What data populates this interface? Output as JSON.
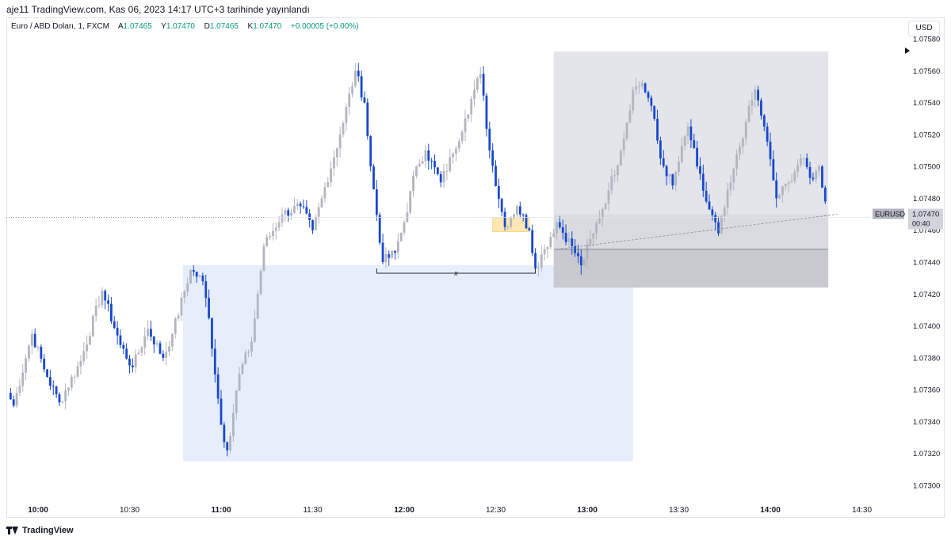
{
  "header": {
    "publisher": "aje11 TradingView.com, Kas 06, 2023 14:17 UTC+3 tarihinde yayınlandı"
  },
  "legend": {
    "symbol": "Euro / ABD Doları, 1, FXCM",
    "open_label": "A",
    "open": "1.07465",
    "high_label": "Y",
    "high": "1.07470",
    "low_label": "D",
    "low": "1.07465",
    "close_label": "K",
    "close": "1.07470",
    "change": "+0.00005 (+0.00%)"
  },
  "currency_button": "USD",
  "footer": {
    "brand": "TradingView"
  },
  "colors": {
    "up": "#b2b5be",
    "down": "#1848cc",
    "range_box": "#e6edfb",
    "premium_box": "#e3e5ea",
    "discount_box": "#c8cad0",
    "fvg_box": "#fde7b3"
  },
  "chart_data": {
    "type": "candlestick",
    "symbol": "EURUSD",
    "timeframe": "1",
    "ylim": [
      1.0729,
      1.0758
    ],
    "yticks": [
      "1.07300",
      "1.07320",
      "1.07340",
      "1.07360",
      "1.07380",
      "1.07400",
      "1.07420",
      "1.07440",
      "1.07460",
      "1.07480",
      "1.07500",
      "1.07520",
      "1.07540",
      "1.07560",
      "1.07580"
    ],
    "xticks": [
      {
        "label": "10:00",
        "min": 0,
        "bold": true
      },
      {
        "label": "10:30",
        "min": 30,
        "bold": false
      },
      {
        "label": "11:00",
        "min": 60,
        "bold": true
      },
      {
        "label": "11:30",
        "min": 90,
        "bold": false
      },
      {
        "label": "12:00",
        "min": 120,
        "bold": true
      },
      {
        "label": "12:30",
        "min": 150,
        "bold": false
      },
      {
        "label": "13:00",
        "min": 180,
        "bold": true
      },
      {
        "label": "13:30",
        "min": 210,
        "bold": false
      },
      {
        "label": "14:00",
        "min": 240,
        "bold": true
      },
      {
        "label": "14:30",
        "min": 270,
        "bold": false
      }
    ],
    "last_price": {
      "symbol": "EURUSD",
      "price": "1.07470",
      "countdown": "00:40",
      "value": 1.0747
    },
    "range_low_label": "x",
    "pivots": [
      {
        "min": -10,
        "p": 1.07358
      },
      {
        "min": -8,
        "p": 1.0735
      },
      {
        "min": -2,
        "p": 1.07395
      },
      {
        "min": 3,
        "p": 1.07368
      },
      {
        "min": 7,
        "p": 1.07352
      },
      {
        "min": 14,
        "p": 1.07378
      },
      {
        "min": 21,
        "p": 1.07422
      },
      {
        "min": 27,
        "p": 1.07388
      },
      {
        "min": 31,
        "p": 1.07374
      },
      {
        "min": 36,
        "p": 1.07398
      },
      {
        "min": 41,
        "p": 1.0738
      },
      {
        "min": 44,
        "p": 1.07395
      },
      {
        "min": 50,
        "p": 1.07435
      },
      {
        "min": 54,
        "p": 1.07428
      },
      {
        "min": 56,
        "p": 1.07405
      },
      {
        "min": 60,
        "p": 1.07338
      },
      {
        "min": 62,
        "p": 1.07322
      },
      {
        "min": 66,
        "p": 1.0737
      },
      {
        "min": 70,
        "p": 1.0739
      },
      {
        "min": 74,
        "p": 1.0745
      },
      {
        "min": 80,
        "p": 1.0747
      },
      {
        "min": 86,
        "p": 1.07475
      },
      {
        "min": 90,
        "p": 1.0746
      },
      {
        "min": 93,
        "p": 1.0748
      },
      {
        "min": 99,
        "p": 1.0752
      },
      {
        "min": 104,
        "p": 1.0756
      },
      {
        "min": 107,
        "p": 1.0754
      },
      {
        "min": 109,
        "p": 1.075
      },
      {
        "min": 113,
        "p": 1.0744
      },
      {
        "min": 117,
        "p": 1.07446
      },
      {
        "min": 120,
        "p": 1.07465
      },
      {
        "min": 124,
        "p": 1.075
      },
      {
        "min": 127,
        "p": 1.0751
      },
      {
        "min": 132,
        "p": 1.0749
      },
      {
        "min": 136,
        "p": 1.07508
      },
      {
        "min": 140,
        "p": 1.0753
      },
      {
        "min": 143,
        "p": 1.07548
      },
      {
        "min": 145,
        "p": 1.07558
      },
      {
        "min": 148,
        "p": 1.0751
      },
      {
        "min": 153,
        "p": 1.07462
      },
      {
        "min": 157,
        "p": 1.07475
      },
      {
        "min": 161,
        "p": 1.0746
      },
      {
        "min": 163,
        "p": 1.07436
      },
      {
        "min": 166,
        "p": 1.07448
      },
      {
        "min": 170,
        "p": 1.07465
      },
      {
        "min": 175,
        "p": 1.0745
      },
      {
        "min": 178,
        "p": 1.07438
      },
      {
        "min": 182,
        "p": 1.07458
      },
      {
        "min": 187,
        "p": 1.07485
      },
      {
        "min": 191,
        "p": 1.0751
      },
      {
        "min": 195,
        "p": 1.07548
      },
      {
        "min": 198,
        "p": 1.07552
      },
      {
        "min": 201,
        "p": 1.07538
      },
      {
        "min": 204,
        "p": 1.07505
      },
      {
        "min": 208,
        "p": 1.07488
      },
      {
        "min": 213,
        "p": 1.07525
      },
      {
        "min": 216,
        "p": 1.075
      },
      {
        "min": 219,
        "p": 1.07478
      },
      {
        "min": 223,
        "p": 1.07458
      },
      {
        "min": 227,
        "p": 1.0749
      },
      {
        "min": 232,
        "p": 1.07528
      },
      {
        "min": 235,
        "p": 1.07548
      },
      {
        "min": 238,
        "p": 1.07525
      },
      {
        "min": 242,
        "p": 1.0748
      },
      {
        "min": 246,
        "p": 1.0749
      },
      {
        "min": 250,
        "p": 1.07505
      },
      {
        "min": 254,
        "p": 1.07492
      },
      {
        "min": 256,
        "p": 1.075
      },
      {
        "min": 258,
        "p": 1.07478
      },
      {
        "min": 262,
        "p": 1.0747
      }
    ]
  }
}
